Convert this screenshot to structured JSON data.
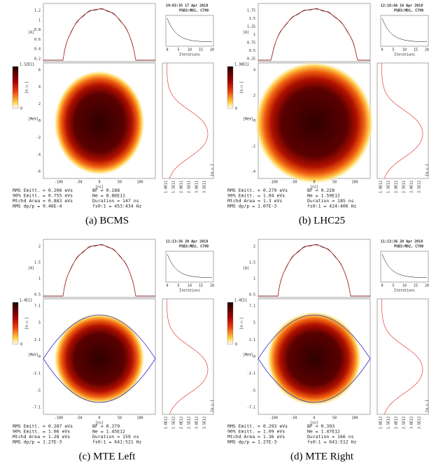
{
  "panels": [
    {
      "caption": "(a) BCMS",
      "timestamp": "19:03:35 17 Apr 2018",
      "machine": "PSB3:MD1, C798",
      "profile_unit": "[A]",
      "profile_yticks": [
        "1.2",
        "1",
        "0.8",
        "0.6",
        "0.4",
        "0.2"
      ],
      "iter_ticks": [
        "0",
        "5",
        "10",
        "15",
        "20"
      ],
      "iter_label": "Iterations",
      "cbar_max": "1.32E11",
      "cbar_min": "0",
      "cbar_unit": "[a.u.]",
      "phase_unit": "[MeV]",
      "phase_yticks": [
        "6",
        "4",
        "2",
        "0",
        "-2",
        "-4",
        "-6"
      ],
      "time_ticks": [
        "-100",
        "-50",
        "0",
        "50",
        "100"
      ],
      "time_unit": "[ns]",
      "proj_ticks": [
        "1.0E11",
        "1.5E11",
        "2.0E11",
        "2.5E11",
        "3.0E11",
        "3.5E11"
      ],
      "proj_unit": "[a.u.]",
      "stats_left": [
        "RMS Emitt. = 0.206 eVs",
        "90% Emitt. = 0.755 eVs",
        "Mtchd Area = 0.883 eVs",
        "RMS dp/p = 9.46E-4"
      ],
      "stats_right": [
        "BF = 0.188",
        "Ne = 8.86E11",
        "Duration = 147 ns",
        "fs0:1 = 453:434 Hz"
      ]
    },
    {
      "caption": "(b) LHC25",
      "timestamp": "12:18:46 16 Apr 2018",
      "machine": "PSB3:MD1, C798",
      "profile_unit": "[A]",
      "profile_yticks": [
        "1.75",
        "1.5",
        "1.25",
        "1",
        "0.75",
        "0.5",
        "0.25"
      ],
      "iter_ticks": [
        "0",
        "5",
        "10",
        "15",
        "20"
      ],
      "iter_label": "Iterations",
      "cbar_max": "1.38E11",
      "cbar_min": "0",
      "cbar_unit": "[a.u.]",
      "phase_unit": "[MeV]",
      "phase_yticks": [
        "4",
        "2",
        "0",
        "-2",
        "-4"
      ],
      "time_ticks": [
        "-100",
        "-50",
        "0",
        "50",
        "100"
      ],
      "time_unit": "[ns]",
      "proj_ticks": [
        "1.0E12",
        "1.5E12",
        "2.0E12",
        "2.5E12",
        "3.0E12",
        "3.5E12"
      ],
      "proj_unit": "[a.u.]",
      "stats_left": [
        "RMS Emitt. = 0.279 eVs",
        "90% Emitt. = 1.04 eVs",
        "Mtchd Area = 1.3 eVs",
        "RMS dp/p = 1.07E-3"
      ],
      "stats_right": [
        "BF = 0.228",
        "Ne = 1.59E12",
        "Duration = 185 ns",
        "fs0:1 = 424:406 Hz"
      ]
    },
    {
      "caption": "(c) MTE Left",
      "timestamp": "11:13:36 20 Apr 2018",
      "machine": "PSB3:MD2, C798",
      "profile_unit": "[A]",
      "profile_yticks": [
        "2",
        "1.5",
        "1",
        "0.5"
      ],
      "iter_ticks": [
        "0",
        "5",
        "10",
        "15",
        "20"
      ],
      "iter_label": "Iterations",
      "cbar_max": "1.4E11",
      "cbar_min": "0",
      "cbar_unit": "[a.u.]",
      "phase_unit": "[MeV]",
      "phase_yticks": [
        "7.1",
        "5",
        "2.1",
        "0",
        "-2.1",
        "-5",
        "-7.1"
      ],
      "time_ticks": [
        "-100",
        "-50",
        "0",
        "50",
        "100"
      ],
      "time_unit": "[ns]",
      "proj_ticks": [
        "1.0E12",
        "1.5E12",
        "2.0E12",
        "2.5E12",
        "3.0E12",
        "3.5E12"
      ],
      "proj_unit": "[a.u.]",
      "stats_left": [
        "RMS Emitt. = 0.287 eVs",
        "90% Emitt. = 1.06 eVs",
        "Mtchd Area = 1.28 eVs",
        "RMS dp/p = 1.27E-3"
      ],
      "stats_right": [
        "BF = 0.379",
        "Ne = 1.45E12",
        "Duration = 159 ns",
        "fs0:1 = 641:521 Hz"
      ]
    },
    {
      "caption": "(d) MTE Right",
      "timestamp": "11:13:36 20 Apr 2018",
      "machine": "PSB3:MD2, C798",
      "profile_unit": "[A]",
      "profile_yticks": [
        "2",
        "1.5",
        "1",
        "0.5"
      ],
      "iter_ticks": [
        "0",
        "5",
        "10",
        "15",
        "20"
      ],
      "iter_label": "Iterations",
      "cbar_max": "1.4E11",
      "cbar_min": "0",
      "cbar_unit": "[a.u.]",
      "phase_unit": "[MeV]",
      "phase_yticks": [
        "7.1",
        "5",
        "2.1",
        "0",
        "-2.1",
        "-5",
        "-7.1"
      ],
      "time_ticks": [
        "-100",
        "-50",
        "0",
        "50",
        "100"
      ],
      "time_unit": "[ns]",
      "proj_ticks": [
        "1.0E12",
        "1.5E12",
        "2.0E12",
        "2.5E12",
        "3.0E12",
        "3.5E12"
      ],
      "proj_unit": "[a.u.]",
      "stats_left": [
        "RMS Emitt. = 0.293 eVs",
        "90% Emitt. = 1.09 eVs",
        "Mtchd Area = 1.36 eVs",
        "RMS dp/p = 1.27E-3"
      ],
      "stats_right": [
        "BF = 0.393",
        "Ne = 1.47E12",
        "Duration = 166 ns",
        "fs0:1 = 641:512 Hz"
      ]
    }
  ]
}
